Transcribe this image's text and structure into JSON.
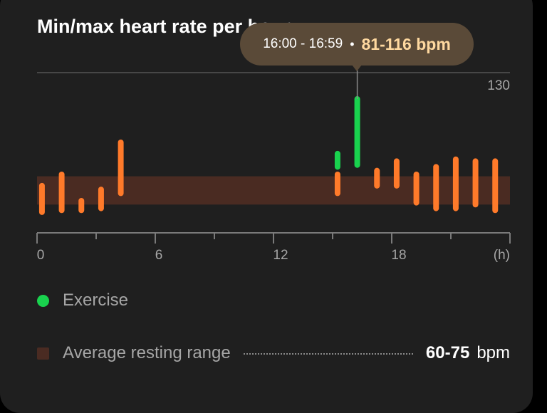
{
  "chart_data": {
    "type": "range-bar",
    "title": "Min/max heart rate per hour",
    "xlabel": "(h)",
    "x_ticks": [
      "0",
      "6",
      "12",
      "18"
    ],
    "xlim": [
      0,
      24
    ],
    "ylim": [
      45,
      130
    ],
    "y_tick_labels": [
      "130"
    ],
    "resting_band": [
      60,
      75
    ],
    "colors": {
      "normal": "#ff7a2a",
      "exercise": "#19d24e",
      "band": "#4a2b22"
    },
    "bars": [
      {
        "hour": 0,
        "min": 56,
        "max": 70,
        "type": "normal"
      },
      {
        "hour": 1,
        "min": 57,
        "max": 76,
        "type": "normal"
      },
      {
        "hour": 2,
        "min": 57,
        "max": 62,
        "type": "normal"
      },
      {
        "hour": 3,
        "min": 58,
        "max": 68,
        "type": "normal"
      },
      {
        "hour": 4,
        "min": 66,
        "max": 93,
        "type": "normal"
      },
      {
        "hour": 15,
        "min": 66,
        "max": 76,
        "type": "normal"
      },
      {
        "hour": 15,
        "min": 80,
        "max": 87,
        "type": "exercise"
      },
      {
        "hour": 16,
        "min": 81,
        "max": 116,
        "type": "exercise"
      },
      {
        "hour": 17,
        "min": 70,
        "max": 78,
        "type": "normal"
      },
      {
        "hour": 18,
        "min": 70,
        "max": 83,
        "type": "normal"
      },
      {
        "hour": 19,
        "min": 61,
        "max": 76,
        "type": "normal"
      },
      {
        "hour": 20,
        "min": 58,
        "max": 80,
        "type": "normal"
      },
      {
        "hour": 21,
        "min": 58,
        "max": 84,
        "type": "normal"
      },
      {
        "hour": 22,
        "min": 60,
        "max": 83,
        "type": "normal"
      },
      {
        "hour": 23,
        "min": 57,
        "max": 83,
        "type": "normal"
      }
    ],
    "selected": {
      "hour": 16
    }
  },
  "tooltip": {
    "range": "16:00 - 16:59",
    "separator": "•",
    "value": "81-116 bpm"
  },
  "legend": {
    "exercise_label": "Exercise",
    "resting_label": "Average resting range",
    "resting_value": "60-75",
    "resting_unit": "bpm"
  }
}
